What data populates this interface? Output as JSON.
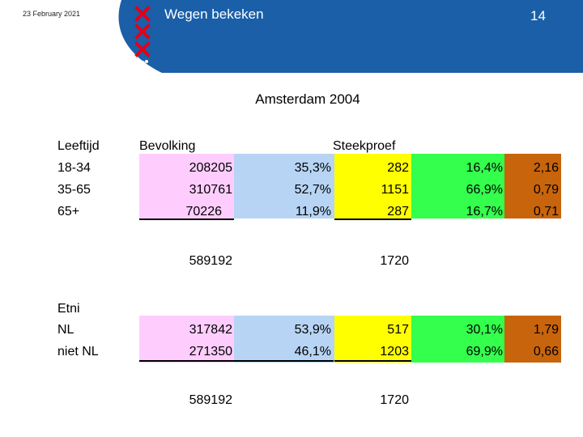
{
  "header": {
    "date": "23 February 2021",
    "title": "Wegen bekeken",
    "page_number": "14",
    "logo_icon": "amsterdam-xxx-crest-icon"
  },
  "heading": "Amsterdam 2004",
  "columns": {
    "age": "Leeftijd",
    "population": "Bevolking",
    "sample": "Steekproef"
  },
  "age_rows": [
    {
      "label": "18-34",
      "population": "208205",
      "pop_pct": "35,3%",
      "sample": "282",
      "sample_pct": "16,4%",
      "ratio": "2,16"
    },
    {
      "label": "35-65",
      "population": "310761",
      "pop_pct": "52,7%",
      "sample": "1151",
      "sample_pct": "66,9%",
      "ratio": "0,79"
    },
    {
      "label": "65+",
      "population": "70226",
      "pop_pct": "11,9%",
      "sample": "287",
      "sample_pct": "16,7%",
      "ratio": "0,71"
    }
  ],
  "age_totals": {
    "population": "589192",
    "sample": "1720"
  },
  "ethnic_label": "Etni",
  "ethnic_rows": [
    {
      "label": "NL",
      "population": "317842",
      "pop_pct": "53,9%",
      "sample": "517",
      "sample_pct": "30,1%",
      "ratio": "1,79"
    },
    {
      "label": "niet NL",
      "population": "271350",
      "pop_pct": "46,1%",
      "sample": "1203",
      "sample_pct": "69,9%",
      "ratio": "0,66"
    }
  ],
  "ethnic_totals": {
    "population": "589192",
    "sample": "1720"
  },
  "colors": {
    "header_blue": "#1a5fa8",
    "pink": "#fecdfe",
    "blue": "#b7d4f4",
    "yellow": "#ffff00",
    "green": "#33ff4c",
    "brown": "#c8640c",
    "logo_red": "#e2001a"
  }
}
